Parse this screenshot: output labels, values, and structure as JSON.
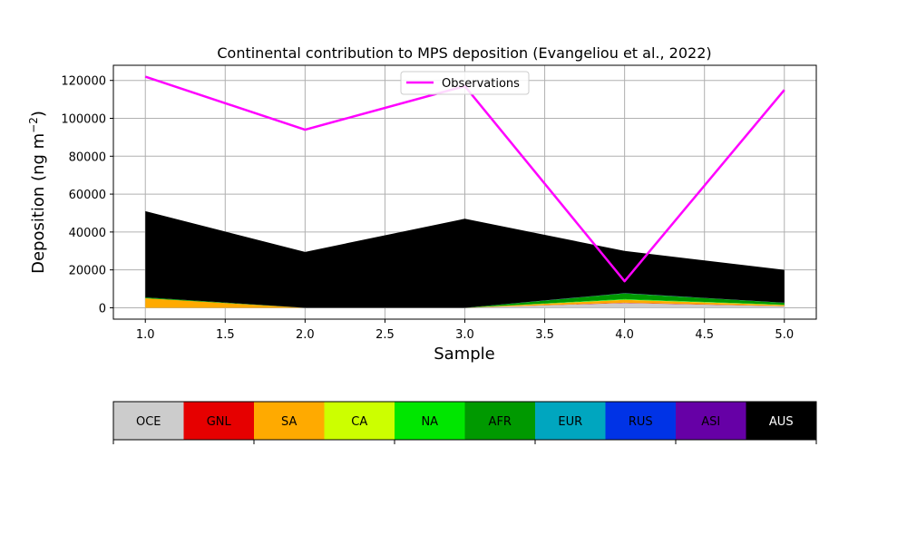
{
  "chart_data": {
    "type": "area",
    "title": "Continental contribution to MPS deposition (Evangeliou et al., 2022)",
    "xlabel": "Sample",
    "ylabel_main": "Deposition (ng m",
    "ylabel_exp": "−2",
    "ylabel_close": ")",
    "xlim": [
      0.8,
      5.2
    ],
    "ylim": [
      -6000,
      128000
    ],
    "x_ticks": [
      1.0,
      1.5,
      2.0,
      2.5,
      3.0,
      3.5,
      4.0,
      4.5,
      5.0
    ],
    "x_tick_labels": [
      "1.0",
      "1.5",
      "2.0",
      "2.5",
      "3.0",
      "3.5",
      "4.0",
      "4.5",
      "5.0"
    ],
    "y_ticks": [
      0,
      20000,
      40000,
      60000,
      80000,
      100000,
      120000
    ],
    "y_tick_labels": [
      "0",
      "20000",
      "40000",
      "60000",
      "80000",
      "100000",
      "120000"
    ],
    "grid": true,
    "legend_position": "top-center",
    "x": [
      1,
      2,
      3,
      4,
      5
    ],
    "series": [
      {
        "name": "OCE",
        "color": "#cccccc",
        "values": [
          0,
          0,
          0,
          2500,
          800
        ]
      },
      {
        "name": "GNL",
        "color": "#e60000",
        "values": [
          0,
          0,
          0,
          200,
          100
        ]
      },
      {
        "name": "SA",
        "color": "#ffaa00",
        "values": [
          5000,
          0,
          0,
          1500,
          500
        ]
      },
      {
        "name": "CA",
        "color": "#ccff00",
        "values": [
          0,
          0,
          0,
          100,
          100
        ]
      },
      {
        "name": "NA",
        "color": "#00e600",
        "values": [
          0,
          0,
          0,
          300,
          100
        ]
      },
      {
        "name": "AFR",
        "color": "#009900",
        "values": [
          500,
          0,
          0,
          3000,
          1000
        ]
      },
      {
        "name": "EUR",
        "color": "#00a6bf",
        "values": [
          0,
          0,
          0,
          100,
          100
        ]
      },
      {
        "name": "RUS",
        "color": "#0033e6",
        "values": [
          0,
          0,
          0,
          0,
          0
        ]
      },
      {
        "name": "ASI",
        "color": "#6600a6",
        "values": [
          0,
          0,
          0,
          0,
          0
        ]
      },
      {
        "name": "AUS",
        "color": "#000000",
        "values": [
          45500,
          29500,
          47000,
          22300,
          17300
        ]
      }
    ],
    "observations": {
      "name": "Observations",
      "color": "#ff00ff",
      "values": [
        122000,
        94000,
        117000,
        14000,
        115000
      ]
    }
  }
}
